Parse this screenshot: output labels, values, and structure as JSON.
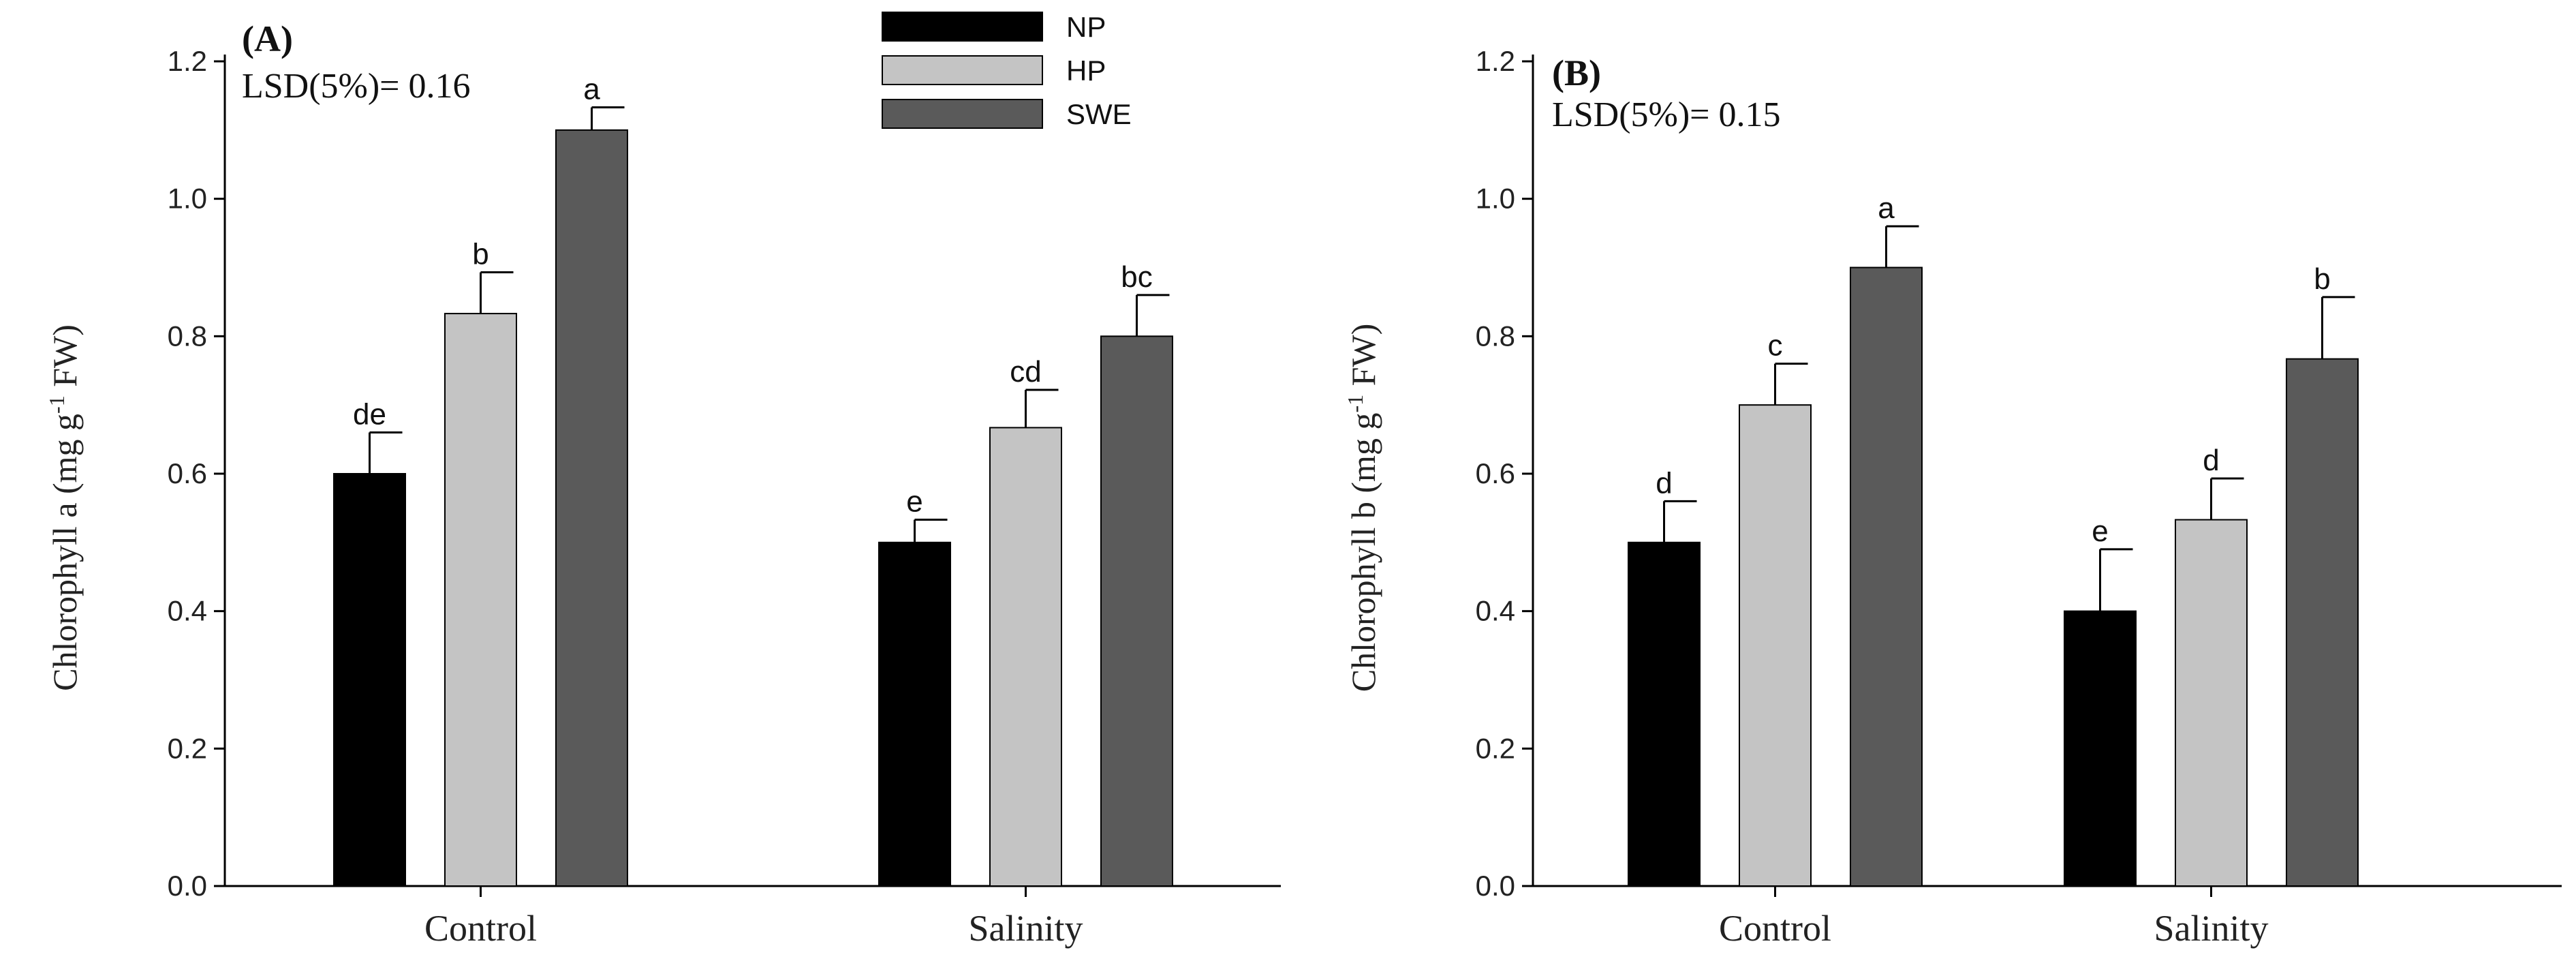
{
  "colors": {
    "NP": "#000000",
    "HP": "#c4c4c4",
    "SWE": "#5a5a5a",
    "axis": "#000000"
  },
  "legend": {
    "entries": [
      "NP",
      "HP",
      "SWE"
    ],
    "position": "top-center"
  },
  "chart_data": [
    {
      "type": "bar",
      "panel": "(A)",
      "annotation": "LSD(5%)= 0.16",
      "ylabel_main": "Chlorophyll a (mg g",
      "ylabel_sup": "-1",
      "ylabel_tail": " FW)",
      "ylim": [
        0,
        1.2
      ],
      "yticks": [
        "0.0",
        "0.2",
        "0.4",
        "0.6",
        "0.8",
        "1.0",
        "1.2"
      ],
      "categories": [
        "Control",
        "Salinity"
      ],
      "series": [
        {
          "name": "NP",
          "values": [
            0.6,
            0.5
          ],
          "errors": [
            0.06,
            0.033
          ],
          "letters": [
            "de",
            "e"
          ]
        },
        {
          "name": "HP",
          "values": [
            0.833,
            0.667
          ],
          "errors": [
            0.06,
            0.055
          ],
          "letters": [
            "b",
            "cd"
          ]
        },
        {
          "name": "SWE",
          "values": [
            1.1,
            0.8
          ],
          "errors": [
            0.033,
            0.06
          ],
          "letters": [
            "a",
            "bc"
          ]
        }
      ]
    },
    {
      "type": "bar",
      "panel": "(B)",
      "annotation": "LSD(5%)= 0.15",
      "ylabel_main": "Chlorophyll b (mg g",
      "ylabel_sup": "-1",
      "ylabel_tail": " FW)",
      "ylim": [
        0,
        1.2
      ],
      "yticks": [
        "0.0",
        "0.2",
        "0.4",
        "0.6",
        "0.8",
        "1.0",
        "1.2"
      ],
      "categories": [
        "Control",
        "Salinity"
      ],
      "series": [
        {
          "name": "NP",
          "values": [
            0.5,
            0.4
          ],
          "errors": [
            0.06,
            0.09
          ],
          "letters": [
            "d",
            "e"
          ]
        },
        {
          "name": "HP",
          "values": [
            0.7,
            0.533
          ],
          "errors": [
            0.06,
            0.06
          ],
          "letters": [
            "c",
            "d"
          ]
        },
        {
          "name": "SWE",
          "values": [
            0.9,
            0.767
          ],
          "errors": [
            0.06,
            0.09
          ],
          "letters": [
            "a",
            "b"
          ]
        }
      ]
    }
  ]
}
